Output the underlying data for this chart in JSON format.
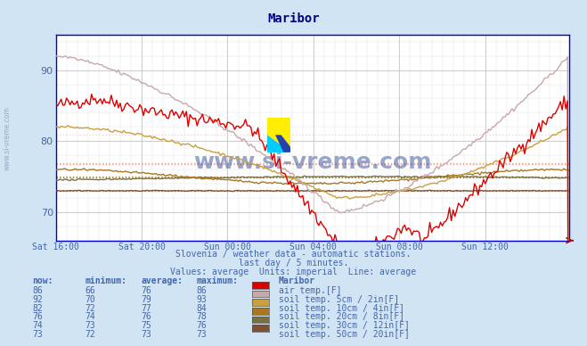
{
  "title": "Maribor",
  "title_color": "#000080",
  "bg_color": "#d0e4f4",
  "plot_bg_color": "#ffffff",
  "grid_color_major": "#c8c8c8",
  "grid_color_minor": "#e0e0e0",
  "text_color": "#4466aa",
  "watermark": "www.si-vreme.com",
  "watermark_color": "#1a3a8a",
  "sidebar_text": "www.si-vreme.com",
  "subtitle1": "Slovenia / weather data - automatic stations.",
  "subtitle2": "last day / 5 minutes.",
  "subtitle3": "Values: average  Units: imperial  Line: average",
  "x_labels": [
    "Sat 16:00",
    "Sat 20:00",
    "Sun 00:00",
    "Sun 04:00",
    "Sun 08:00",
    "Sun 12:00"
  ],
  "x_ticks_pos": [
    0,
    48,
    96,
    144,
    192,
    240
  ],
  "ylim_low": 66,
  "ylim_high": 95,
  "yticks": [
    70,
    80,
    90
  ],
  "n_points": 288,
  "series_air_color": "#dd0000",
  "series_soil5_color": "#c8a8a8",
  "series_soil10_color": "#c8a040",
  "series_soil20_color": "#a87820",
  "series_soil30_color": "#787040",
  "series_soil50_color": "#805030",
  "avg_air_color": "#ff9999",
  "avg_soil5_color": "#ffcccc",
  "avg_soil10_color": "#e0b860",
  "avg_soil20_color": "#c09040",
  "avg_soil30_color": "#908060",
  "avg_soil50_color": "#a07050",
  "legend_rows": [
    {
      "now": 86,
      "min": 66,
      "avg": 76,
      "max": 86,
      "color": "#dd0000",
      "label": "air temp.[F]"
    },
    {
      "now": 92,
      "min": 70,
      "avg": 79,
      "max": 93,
      "color": "#c8a8a8",
      "label": "soil temp. 5cm / 2in[F]"
    },
    {
      "now": 82,
      "min": 72,
      "avg": 77,
      "max": 84,
      "color": "#c8a040",
      "label": "soil temp. 10cm / 4in[F]"
    },
    {
      "now": 76,
      "min": 74,
      "avg": 76,
      "max": 78,
      "color": "#a87820",
      "label": "soil temp. 20cm / 8in[F]"
    },
    {
      "now": 74,
      "min": 73,
      "avg": 75,
      "max": 76,
      "color": "#787040",
      "label": "soil temp. 30cm / 12in[F]"
    },
    {
      "now": 73,
      "min": 72,
      "avg": 73,
      "max": 73,
      "color": "#805030",
      "label": "soil temp. 50cm / 20in[F]"
    }
  ]
}
